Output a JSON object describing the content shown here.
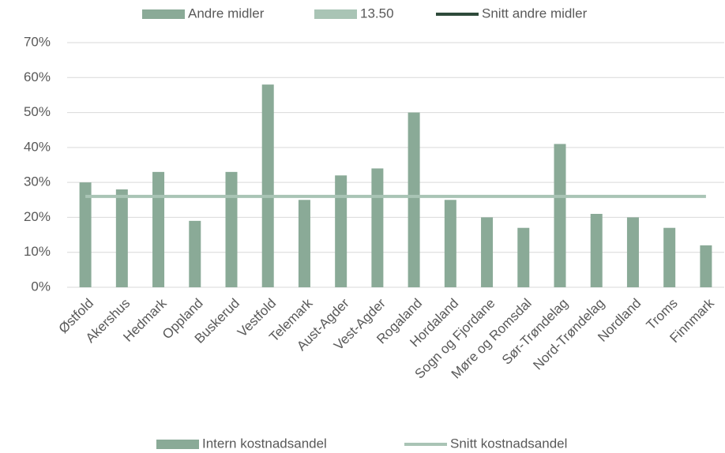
{
  "chart_data": {
    "type": "bar",
    "categories": [
      "Østfold",
      "Akershus",
      "Hedmark",
      "Oppland",
      "Buskerud",
      "Vestfold",
      "Telemark",
      "Aust-Agder",
      "Vest-Agder",
      "Rogaland",
      "Hordaland",
      "Sogn og Fjordane",
      "Møre og Romsdal",
      "Sør-Trøndelag",
      "Nord-Trøndelag",
      "Nordland",
      "Troms",
      "Finnmark"
    ],
    "series": [
      {
        "name": "Intern kostnadsandel",
        "type": "bar",
        "color": "#8aaa97",
        "values": [
          30,
          28,
          33,
          19,
          33,
          58,
          25,
          32,
          34,
          50,
          25,
          20,
          17,
          41,
          21,
          20,
          17,
          12
        ]
      },
      {
        "name": "Snitt kostnadsandel",
        "type": "line",
        "color": "#a9c4b5",
        "values": [
          26,
          26,
          26,
          26,
          26,
          26,
          26,
          26,
          26,
          26,
          26,
          26,
          26,
          26,
          26,
          26,
          26,
          26
        ]
      }
    ],
    "top_legend": [
      {
        "name": "Andre midler",
        "style": "bar",
        "color": "#8aaa97"
      },
      {
        "name": "13.50",
        "style": "bar",
        "color": "#a9c4b5"
      },
      {
        "name": "Snitt andre midler",
        "style": "line",
        "color": "#2e4a3a"
      }
    ],
    "ylim": [
      0,
      70
    ],
    "yticks": [
      {
        "value": 0,
        "label": "0%"
      },
      {
        "value": 10,
        "label": "10%"
      },
      {
        "value": 20,
        "label": "20%"
      },
      {
        "value": 30,
        "label": "30%"
      },
      {
        "value": 40,
        "label": "40%"
      },
      {
        "value": 50,
        "label": "50%"
      },
      {
        "value": 60,
        "label": "60%"
      },
      {
        "value": 70,
        "label": "70%"
      }
    ],
    "grid": true
  }
}
